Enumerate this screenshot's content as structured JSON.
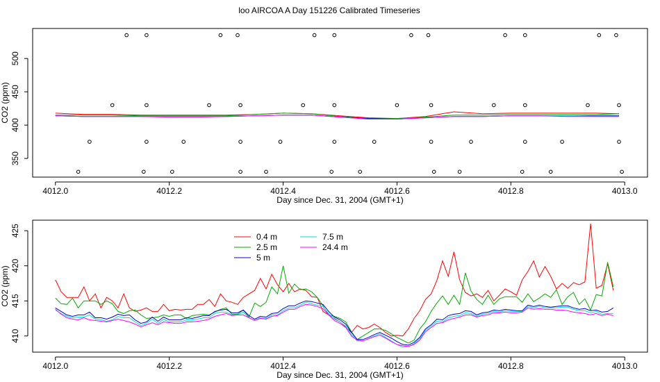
{
  "title": "loo AIRCOA A  Day 151226  Calibrated Timeseries",
  "chart_data": [
    {
      "type": "line",
      "xlabel": "Day since Dec. 31, 2004 (GMT+1)",
      "ylabel": "CO2 (ppm)",
      "xlim": [
        4011.96,
        4013.04
      ],
      "ylim": [
        322,
        545
      ],
      "xticks": [
        "4012.0",
        "4012.2",
        "4012.4",
        "4012.6",
        "4012.8",
        "4013.0"
      ],
      "yticks": [
        "350",
        "400",
        "450",
        "500"
      ],
      "grid": false,
      "colors": [
        "#ff0000",
        "#00aa00",
        "#0000cc",
        "#00dddd",
        "#ff00ff"
      ],
      "x": [
        4012.0,
        4012.05,
        4012.1,
        4012.15,
        4012.2,
        4012.25,
        4012.3,
        4012.35,
        4012.4,
        4012.45,
        4012.5,
        4012.55,
        4012.6,
        4012.65,
        4012.7,
        4012.75,
        4012.8,
        4012.85,
        4012.9,
        4012.95,
        4012.99
      ],
      "series": [
        {
          "values": [
            418,
            416,
            416,
            415,
            415,
            415,
            415,
            416,
            418,
            417,
            414,
            411,
            410,
            413,
            420,
            417,
            418,
            418,
            418,
            418,
            417
          ]
        },
        {
          "values": [
            415,
            415,
            415,
            414,
            414,
            414,
            414,
            416,
            418,
            417,
            413,
            410,
            410,
            412,
            415,
            415,
            416,
            416,
            416,
            416,
            417
          ]
        },
        {
          "values": [
            414,
            413,
            413,
            413,
            413,
            413,
            413,
            414,
            415,
            415,
            412,
            410,
            409,
            411,
            413,
            413,
            414,
            414,
            414,
            414,
            414
          ]
        },
        {
          "values": [
            414,
            413,
            413,
            413,
            413,
            413,
            413,
            414,
            415,
            415,
            412,
            409,
            409,
            411,
            413,
            413,
            414,
            414,
            414,
            413,
            413
          ]
        },
        {
          "values": [
            414,
            413,
            413,
            413,
            412,
            412,
            413,
            414,
            415,
            415,
            412,
            409,
            409,
            411,
            413,
            413,
            414,
            414,
            413,
            413,
            413
          ]
        }
      ],
      "markers": {
        "marker": "open-circle",
        "x": [
          4012.04,
          4012.06,
          4012.1,
          4012.125,
          4012.155,
          4012.16,
          4012.16,
          4012.16,
          4012.205,
          4012.225,
          4012.27,
          4012.29,
          4012.32,
          4012.325,
          4012.325,
          4012.325,
          4012.37,
          4012.395,
          4012.435,
          4012.455,
          4012.485,
          4012.49,
          4012.49,
          4012.49,
          4012.535,
          4012.56,
          4012.6,
          4012.625,
          4012.655,
          4012.66,
          4012.66,
          4012.665,
          4012.71,
          4012.73,
          4012.77,
          4012.79,
          4012.82,
          4012.825,
          4012.825,
          4012.825,
          4012.87,
          4012.89,
          4012.935,
          4012.955,
          4012.985,
          4012.99,
          4012.99,
          4012.995
        ],
        "y": [
          330,
          375,
          430,
          535,
          330,
          375,
          430,
          535,
          330,
          375,
          430,
          535,
          535,
          430,
          375,
          330,
          330,
          375,
          430,
          535,
          330,
          375,
          430,
          535,
          330,
          375,
          430,
          535,
          535,
          430,
          375,
          330,
          330,
          375,
          430,
          535,
          330,
          375,
          430,
          535,
          330,
          375,
          430,
          535,
          535,
          430,
          375,
          330
        ]
      }
    },
    {
      "type": "line",
      "xlabel": "Day since Dec. 31, 2004 (GMT+1)",
      "ylabel": "CO2 (ppm)",
      "xlim": [
        4011.96,
        4013.04
      ],
      "ylim": [
        407.7,
        426.5
      ],
      "xticks": [
        "4012.0",
        "4012.2",
        "4012.4",
        "4012.6",
        "4012.8",
        "4013.0"
      ],
      "yticks": [
        "410",
        "415",
        "420",
        "425"
      ],
      "grid": false,
      "legend": {
        "position": "top-left-inside"
      },
      "x": [
        4012.0,
        4012.01,
        4012.02,
        4012.03,
        4012.04,
        4012.05,
        4012.06,
        4012.07,
        4012.08,
        4012.09,
        4012.1,
        4012.11,
        4012.12,
        4012.13,
        4012.14,
        4012.15,
        4012.16,
        4012.17,
        4012.18,
        4012.19,
        4012.2,
        4012.21,
        4012.22,
        4012.23,
        4012.24,
        4012.25,
        4012.26,
        4012.27,
        4012.28,
        4012.29,
        4012.3,
        4012.31,
        4012.32,
        4012.33,
        4012.34,
        4012.35,
        4012.36,
        4012.37,
        4012.38,
        4012.39,
        4012.4,
        4012.41,
        4012.42,
        4012.43,
        4012.44,
        4012.45,
        4012.46,
        4012.47,
        4012.48,
        4012.49,
        4012.5,
        4012.51,
        4012.52,
        4012.53,
        4012.54,
        4012.55,
        4012.56,
        4012.57,
        4012.58,
        4012.59,
        4012.6,
        4012.61,
        4012.62,
        4012.63,
        4012.64,
        4012.65,
        4012.66,
        4012.67,
        4012.68,
        4012.69,
        4012.7,
        4012.71,
        4012.72,
        4012.73,
        4012.74,
        4012.75,
        4012.76,
        4012.77,
        4012.78,
        4012.79,
        4012.8,
        4012.81,
        4012.82,
        4012.83,
        4012.84,
        4012.85,
        4012.86,
        4012.87,
        4012.88,
        4012.89,
        4012.9,
        4012.91,
        4012.92,
        4012.93,
        4012.94,
        4012.95,
        4012.96,
        4012.97,
        4012.98
      ],
      "series": [
        {
          "name": "0.4 m",
          "color": "#ff0000",
          "values": [
            418,
            416.3,
            415.5,
            415.5,
            415.5,
            417,
            415,
            416,
            414,
            415.5,
            415,
            414,
            416,
            414,
            413.5,
            413.7,
            414,
            413.5,
            413.5,
            414.5,
            413.6,
            413.8,
            413.7,
            413.8,
            413.8,
            414.5,
            414.5,
            415.2,
            414.2,
            416,
            415,
            414.8,
            414.5,
            415.5,
            416,
            416.5,
            418.2,
            416.7,
            418.8,
            417.3,
            416.3,
            417.5,
            416.3,
            416.7,
            416.5,
            415.6,
            415.5,
            413.5,
            413,
            412.5,
            412,
            411.3,
            410.5,
            411.5,
            411,
            411.2,
            411.7,
            411.2,
            410.5,
            410,
            410.1,
            410,
            411,
            412.5,
            413.6,
            415.2,
            416,
            417.9,
            420.7,
            418.5,
            422,
            418,
            416.2,
            415.7,
            416,
            415.5,
            416.5,
            415,
            415.8,
            416.7,
            416.3,
            415.8,
            418,
            419.2,
            420.7,
            418.4,
            419.9,
            418.5,
            416.7,
            417.5,
            416.8,
            417.6,
            417.3,
            417.7,
            426,
            416.8,
            417.2,
            420.3,
            416.5
          ]
        },
        {
          "name": "2.5 m",
          "color": "#00aa00",
          "values": [
            415.4,
            414.6,
            414.5,
            415.4,
            414,
            415,
            415,
            415,
            414.5,
            415,
            414.6,
            413.5,
            413.2,
            413.6,
            413.7,
            413,
            412.5,
            412.6,
            412.7,
            413,
            412.8,
            413,
            413,
            412.5,
            412.9,
            413,
            413.1,
            413,
            413.4,
            413.8,
            414,
            413.1,
            413.1,
            413.7,
            412.7,
            414.7,
            414.2,
            414.8,
            417,
            416,
            420,
            416.1,
            417.4,
            416.6,
            416.7,
            416.3,
            415.5,
            414.3,
            413,
            412.8,
            412.5,
            412,
            410.6,
            409.5,
            410,
            410.5,
            411,
            411,
            410.8,
            410.3,
            409.8,
            409.4,
            409,
            409.4,
            411,
            412,
            413.5,
            414.7,
            415.7,
            414.5,
            415.8,
            414.5,
            419,
            416.4,
            415.2,
            414.5,
            415.8,
            414.5,
            415.3,
            415.6,
            415.6,
            415.6,
            414.8,
            416,
            414.9,
            415.4,
            416,
            415.5,
            416.6,
            414.5,
            415.6,
            416.2,
            414.5,
            415.3,
            413.7,
            415.9,
            415.7,
            420.5,
            417
          ]
        },
        {
          "name": "5 m",
          "color": "#0000cc",
          "values": [
            414,
            413.5,
            413,
            412.8,
            413,
            413,
            413.4,
            412.6,
            412.6,
            412.4,
            412.7,
            413.1,
            412.9,
            413,
            412.3,
            411.8,
            412,
            412.7,
            412.1,
            412.7,
            412.3,
            412.3,
            412.3,
            412.6,
            412.5,
            412.7,
            412.9,
            412.9,
            413.5,
            413.7,
            413.8,
            413.3,
            413.3,
            413.7,
            412.9,
            412.4,
            412.8,
            412.7,
            413.2,
            413.3,
            413.9,
            414.3,
            414.3,
            414.7,
            415,
            414.9,
            414.7,
            414.5,
            413.5,
            412.7,
            412.3,
            411.7,
            410.5,
            409.5,
            409.5,
            409.8,
            410.2,
            410.5,
            410.1,
            409.7,
            409.2,
            408.8,
            408.7,
            409.1,
            409.8,
            411,
            411.6,
            412.4,
            412.3,
            412.9,
            413.1,
            413.2,
            413.6,
            413.5,
            413,
            413.3,
            413.4,
            413.7,
            413.6,
            413.8,
            413.7,
            413.6,
            413.6,
            414.4,
            414.2,
            414.4,
            414.2,
            414.1,
            414.2,
            414.3,
            414.3,
            414,
            413.8,
            413.9,
            413.6,
            413.7,
            413.4,
            413.5,
            414
          ]
        },
        {
          "name": "7.5 m",
          "color": "#00dddd",
          "values": [
            413.7,
            413.2,
            412.8,
            412.6,
            412.7,
            412.7,
            413,
            412.4,
            412.3,
            412.1,
            412.3,
            412.8,
            412.6,
            412.6,
            412,
            411.5,
            411.8,
            412.4,
            411.8,
            412.4,
            412,
            412,
            412,
            412.3,
            412.3,
            412.4,
            412.6,
            412.6,
            413.2,
            413.4,
            413.4,
            413,
            413,
            413.4,
            412.6,
            412.2,
            412.6,
            412.5,
            413,
            413,
            413.6,
            414,
            414,
            414.4,
            414.8,
            414.6,
            414.4,
            414.2,
            413.2,
            412.4,
            412,
            411.4,
            410.2,
            409.3,
            409.3,
            409.6,
            410,
            410.3,
            409.8,
            409.3,
            408.8,
            408.4,
            408.5,
            408.9,
            409.6,
            410.8,
            411.4,
            412.1,
            412,
            412.6,
            412.8,
            412.9,
            413.3,
            413.2,
            412.8,
            413.1,
            413.2,
            413.5,
            413.4,
            413.6,
            413.5,
            413.5,
            413.5,
            414.2,
            414,
            414.2,
            414,
            414,
            414,
            414.1,
            414.1,
            413.8,
            413.6,
            413.6,
            413.3,
            413.5,
            413.1,
            413.2,
            413.2
          ]
        },
        {
          "name": "24.4 m",
          "color": "#ff00ff",
          "values": [
            413.8,
            413.1,
            412.6,
            412.4,
            412.3,
            412.6,
            412.3,
            412.2,
            412.1,
            412,
            412.2,
            412.4,
            412.2,
            412,
            411.7,
            411.3,
            411.6,
            411.9,
            411.6,
            412,
            411.9,
            411.8,
            411.8,
            412,
            412,
            412.1,
            412.2,
            412.4,
            412.8,
            413,
            413.2,
            412.9,
            413,
            413,
            412.6,
            412.2,
            412.5,
            412.4,
            412.8,
            412.9,
            413.4,
            413.8,
            413.8,
            414.2,
            414.5,
            414.4,
            414.2,
            413.9,
            413,
            412.2,
            411.8,
            411.2,
            410,
            409.4,
            409.3,
            409.6,
            409.9,
            410.1,
            409.7,
            409.2,
            408.8,
            408.6,
            408.5,
            408.8,
            409.4,
            410.6,
            411.2,
            411.8,
            411.9,
            412.3,
            412.5,
            412.7,
            413,
            413,
            412.7,
            412.9,
            413,
            413.3,
            413.3,
            413.4,
            413.3,
            413.3,
            413.4,
            414,
            413.8,
            413.9,
            413.8,
            413.8,
            413.7,
            413.7,
            413.6,
            413.4,
            413.3,
            413.2,
            413,
            413.2,
            412.9,
            413.1,
            412.9
          ]
        }
      ]
    }
  ]
}
